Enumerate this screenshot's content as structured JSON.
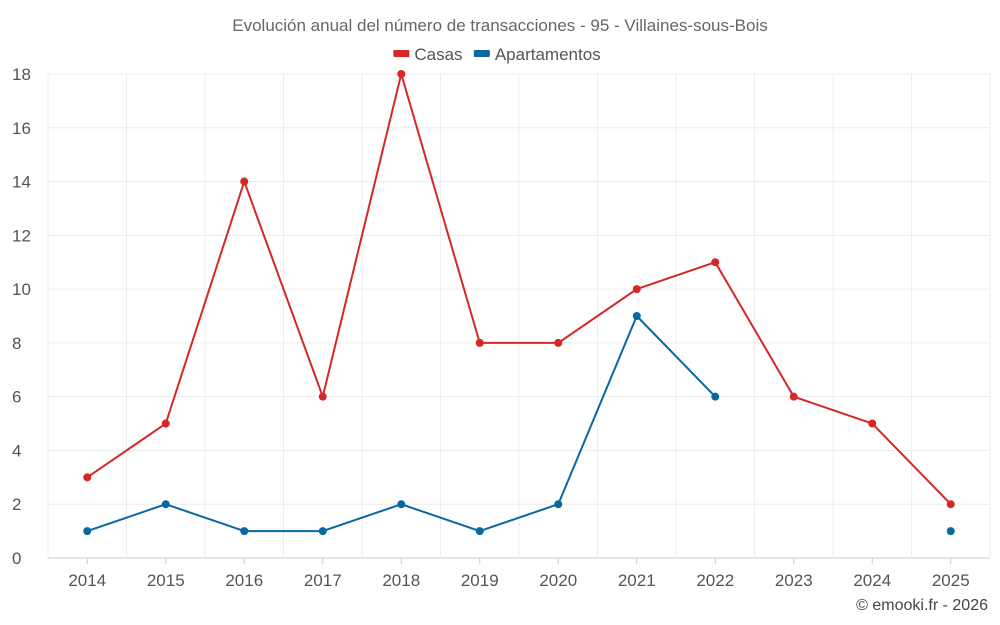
{
  "chart_data": {
    "type": "line",
    "title": "Evolución anual del número de transacciones - 95 - Villaines-sous-Bois",
    "categories": [
      "2014",
      "2015",
      "2016",
      "2017",
      "2018",
      "2019",
      "2020",
      "2021",
      "2022",
      "2023",
      "2024",
      "2025"
    ],
    "series": [
      {
        "name": "Casas",
        "color": "#d62728",
        "values": [
          3,
          5,
          14,
          6,
          18,
          8,
          8,
          10,
          11,
          6,
          5,
          2
        ]
      },
      {
        "name": "Apartamentos",
        "color": "#0868a0",
        "values": [
          1,
          2,
          1,
          1,
          2,
          1,
          2,
          9,
          6,
          null,
          null,
          1
        ]
      }
    ],
    "ylim": [
      0,
      18
    ],
    "yticks": [
      0,
      2,
      4,
      6,
      8,
      10,
      12,
      14,
      16,
      18
    ],
    "xlabel": "",
    "ylabel": "",
    "grid": true,
    "legend": "top-center"
  },
  "credit": "© emooki.fr - 2026"
}
